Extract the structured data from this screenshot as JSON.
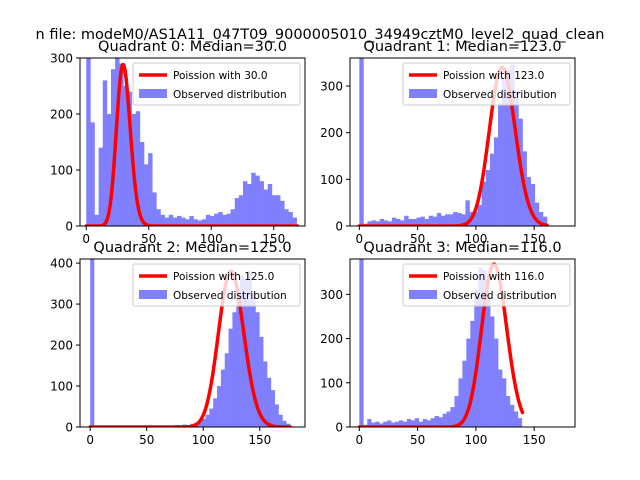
{
  "figure": {
    "suptitle": "n file: modeM0/AS1A11_047T09_9000005010_34949cztM0_level2_quad_clean"
  },
  "colors": {
    "hist": "#8080ff",
    "poisson": "#ff0000",
    "axis": "#000000"
  },
  "chart_data": [
    {
      "type": "bar",
      "title": "Quadrant 0: Median=30.0",
      "legend": {
        "line": "Poission with 30.0",
        "bar": "Observed distribution",
        "placement": "top-right"
      },
      "xlim": [
        -5,
        175
      ],
      "ylim": [
        0,
        300
      ],
      "xticks": [
        0,
        50,
        100,
        150
      ],
      "yticks": [
        0,
        100,
        200,
        300
      ],
      "bin_width": 3.3,
      "hist_values": [
        300,
        185,
        20,
        140,
        260,
        200,
        280,
        300,
        290,
        250,
        240,
        200,
        205,
        150,
        110,
        130,
        60,
        30,
        20,
        15,
        20,
        15,
        18,
        15,
        12,
        18,
        12,
        10,
        12,
        20,
        18,
        22,
        25,
        20,
        22,
        30,
        50,
        55,
        80,
        75,
        95,
        90,
        80,
        65,
        75,
        55,
        55,
        45,
        30,
        25,
        15
      ],
      "poisson": {
        "mean": 30.0,
        "peak": 288
      }
    },
    {
      "type": "bar",
      "title": "Quadrant 1: Median=123.0",
      "legend": {
        "line": "Poission with 123.0",
        "bar": "Observed distribution",
        "placement": "top-right"
      },
      "xlim": [
        -8,
        185
      ],
      "ylim": [
        0,
        360
      ],
      "xticks": [
        0,
        50,
        100,
        150
      ],
      "yticks": [
        0,
        100,
        200,
        300
      ],
      "bin_width": 3.5,
      "hist_values": [
        360,
        5,
        10,
        12,
        10,
        15,
        12,
        10,
        18,
        15,
        12,
        22,
        15,
        15,
        18,
        20,
        15,
        22,
        20,
        28,
        22,
        25,
        25,
        30,
        28,
        25,
        55,
        30,
        30,
        45,
        95,
        120,
        155,
        190,
        260,
        320,
        335,
        345,
        290,
        230,
        160,
        105,
        90,
        50,
        30,
        20
      ],
      "poisson": {
        "mean": 123.0,
        "peak": 340
      }
    },
    {
      "type": "bar",
      "title": "Quadrant 2: Median=125.0",
      "legend": {
        "line": "Poission with 125.0",
        "bar": "Observed distribution",
        "placement": "top-right"
      },
      "xlim": [
        -9,
        190
      ],
      "ylim": [
        0,
        410
      ],
      "xticks": [
        0,
        50,
        100,
        150
      ],
      "yticks": [
        0,
        100,
        200,
        300,
        400
      ],
      "bin_width": 3.4,
      "hist_values": [
        410,
        0,
        0,
        0,
        0,
        0,
        0,
        0,
        0,
        0,
        0,
        0,
        0,
        0,
        0,
        0,
        0,
        0,
        0,
        0,
        2,
        3,
        5,
        4,
        6,
        5,
        8,
        10,
        12,
        20,
        30,
        45,
        70,
        100,
        140,
        180,
        240,
        280,
        330,
        370,
        360,
        380,
        330,
        280,
        220,
        160,
        120,
        90,
        55,
        30,
        15,
        8
      ],
      "poisson": {
        "mean": 125.0,
        "peak": 380
      }
    },
    {
      "type": "bar",
      "title": "Quadrant 3: Median=116.0",
      "legend": {
        "line": "Poission with 116.0",
        "bar": "Observed distribution",
        "placement": "top-right"
      },
      "xlim": [
        -8,
        185
      ],
      "ylim": [
        0,
        380
      ],
      "xticks": [
        0,
        50,
        100,
        150
      ],
      "yticks": [
        0,
        100,
        200,
        300
      ],
      "bin_width": 3.4,
      "hist_values": [
        380,
        5,
        18,
        10,
        12,
        8,
        12,
        15,
        10,
        12,
        15,
        12,
        18,
        15,
        20,
        12,
        18,
        15,
        20,
        25,
        22,
        30,
        35,
        45,
        70,
        110,
        150,
        200,
        240,
        310,
        360,
        355,
        300,
        250,
        200,
        130,
        110,
        70,
        50,
        35,
        20
      ],
      "poisson": {
        "mean": 116.0,
        "peak": 368
      }
    }
  ]
}
